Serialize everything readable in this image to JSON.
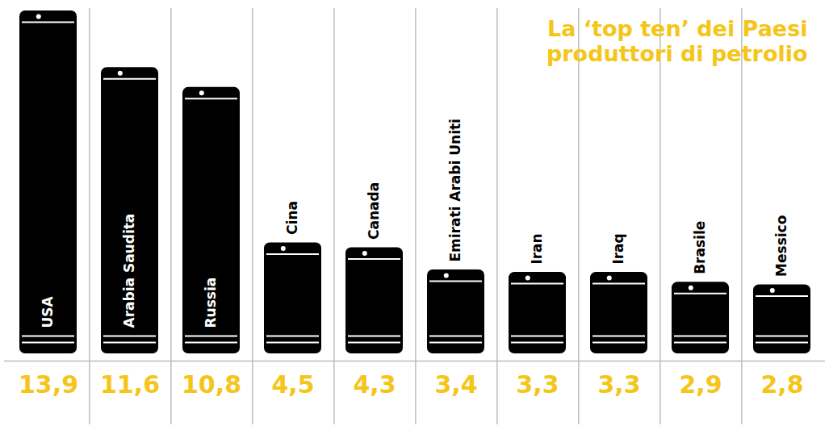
{
  "chart_data": {
    "type": "bar",
    "title": "La ‘top ten’ dei Paesi produttori di petrolio",
    "categories": [
      "USA",
      "Arabia Saudita",
      "Russia",
      "Cina",
      "Canada",
      "Emirati Arabi Uniti",
      "Iran",
      "Iraq",
      "Brasile",
      "Messico"
    ],
    "values": [
      13.9,
      11.6,
      10.8,
      4.5,
      4.3,
      3.4,
      3.3,
      3.3,
      2.9,
      2.8
    ],
    "value_labels": [
      "13,9",
      "11,6",
      "10,8",
      "4,5",
      "4,3",
      "3,4",
      "3,3",
      "3,3",
      "2,9",
      "2,8"
    ],
    "color": "#000000",
    "ylim": [
      0,
      14
    ],
    "data_labels": true,
    "tick_labels": false
  }
}
